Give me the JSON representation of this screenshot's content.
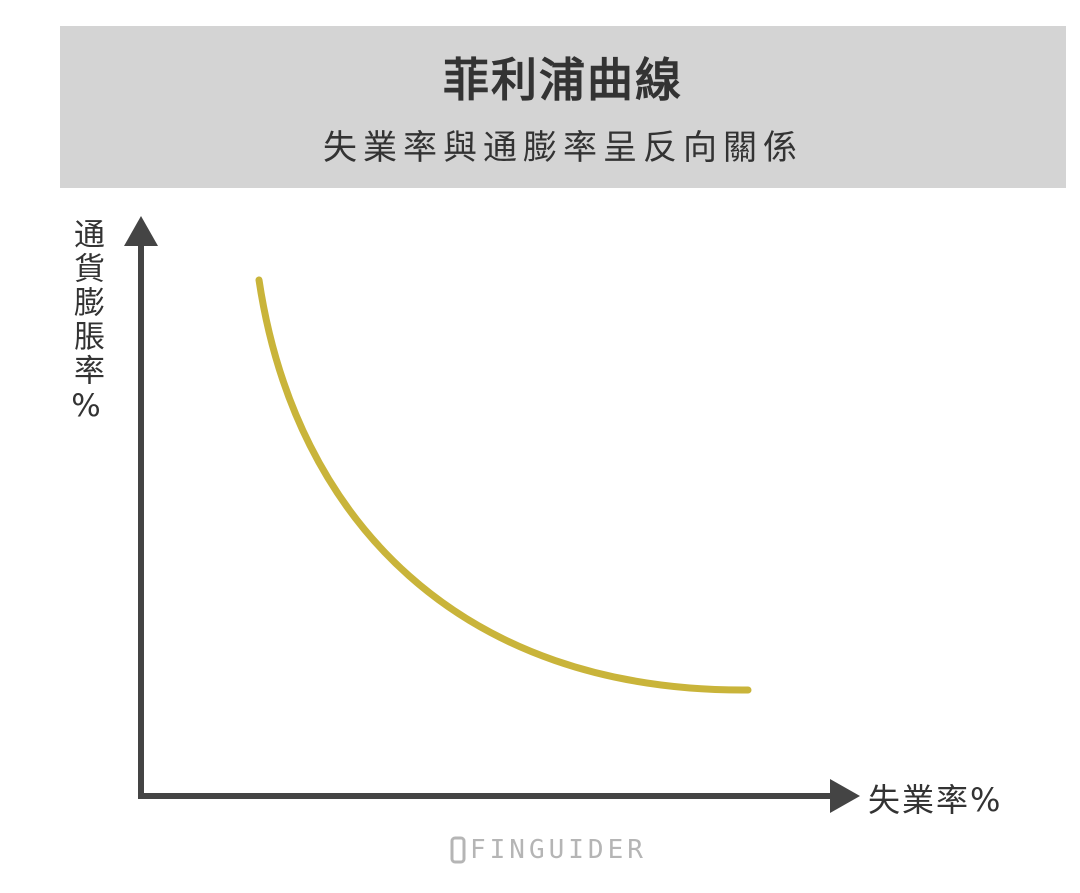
{
  "header": {
    "title": "菲利浦曲線",
    "subtitle": "失業率與通膨率呈反向關係"
  },
  "axes": {
    "y_label": "通貨膨脹率%",
    "x_label": "失業率%"
  },
  "watermark": "FINGUIDER"
}
